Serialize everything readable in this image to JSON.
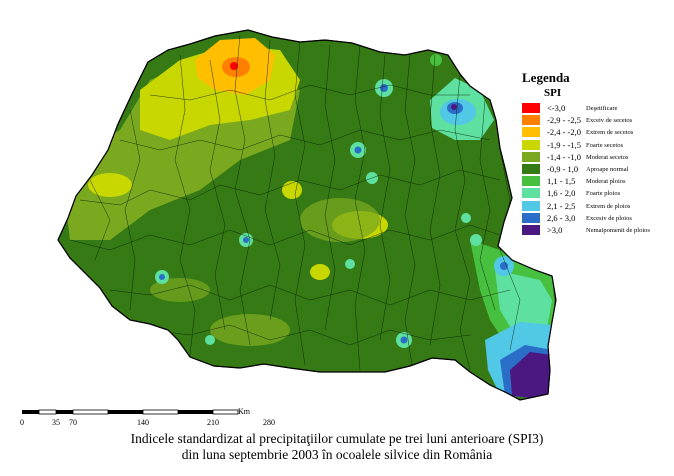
{
  "legend": {
    "title": "Legenda",
    "subtitle": "SPI",
    "items": [
      {
        "range": "<-3,0",
        "label": "Deşetificare",
        "color": "#ff0000"
      },
      {
        "range": "-2,9 - -2,5",
        "label": "Exceiv de secetos",
        "color": "#ff7f00"
      },
      {
        "range": "-2,4 - -2,0",
        "label": "Extrem de secetos",
        "color": "#ffbe00"
      },
      {
        "range": "-1,9 - -1,5",
        "label": "Foarte secetos",
        "color": "#c8d700"
      },
      {
        "range": "-1,4 - -1,0",
        "label": "Moderat secetos",
        "color": "#7aa81f"
      },
      {
        "range": "-0,9 - 1,0",
        "label": "Aproape normal",
        "color": "#357a15"
      },
      {
        "range": "1,1 - 1,5",
        "label": "Moderat ploios",
        "color": "#47c040"
      },
      {
        "range": "1,6 - 2,0",
        "label": "Foarte ploios",
        "color": "#5ee0a0"
      },
      {
        "range": "2,1 - 2,5",
        "label": "Extrem de ploios",
        "color": "#50c8e6"
      },
      {
        "range": "2,6 - 3,0",
        "label": "Excesiv de ploios",
        "color": "#2a6ec8"
      },
      {
        "range": ">3,0",
        "label": "Nemaipomenit de ploios",
        "color": "#4a1880"
      }
    ]
  },
  "scale": {
    "unit": "Km",
    "ticks": [
      "0",
      "35",
      "70",
      "140",
      "210",
      "280"
    ]
  },
  "caption": {
    "line1": "Indicele standardizat al precipitaţiilor cumulate pe trei luni anterioare (SPI3)",
    "line2": "din luna septembrie 2003 în ocoalele silvice din România"
  }
}
